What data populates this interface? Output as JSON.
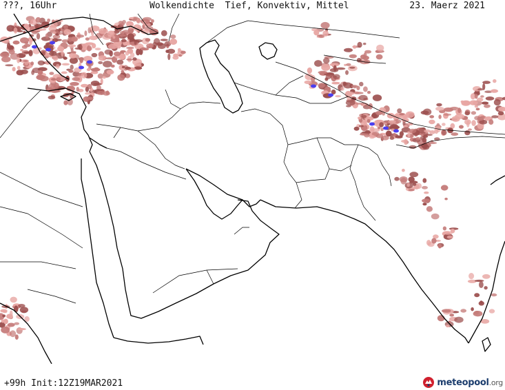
{
  "header": {
    "left_label": "???, 16Uhr",
    "title": "Wolkendichte  Tief, Konvektiv, Mittel",
    "date": "23. Maerz 2021"
  },
  "footer": {
    "run_info": "+99h Init:12Z19MAR2021",
    "logo_name": "meteopool",
    "logo_tld": ".org"
  },
  "colors": {
    "cloud_light": "#e8a7a4",
    "cloud_mid": "#c47a78",
    "cloud_dark": "#9c4f4e",
    "convective": "#4b3ef0",
    "coastline": "#000000",
    "border": "#000000",
    "background": "#ffffff"
  }
}
